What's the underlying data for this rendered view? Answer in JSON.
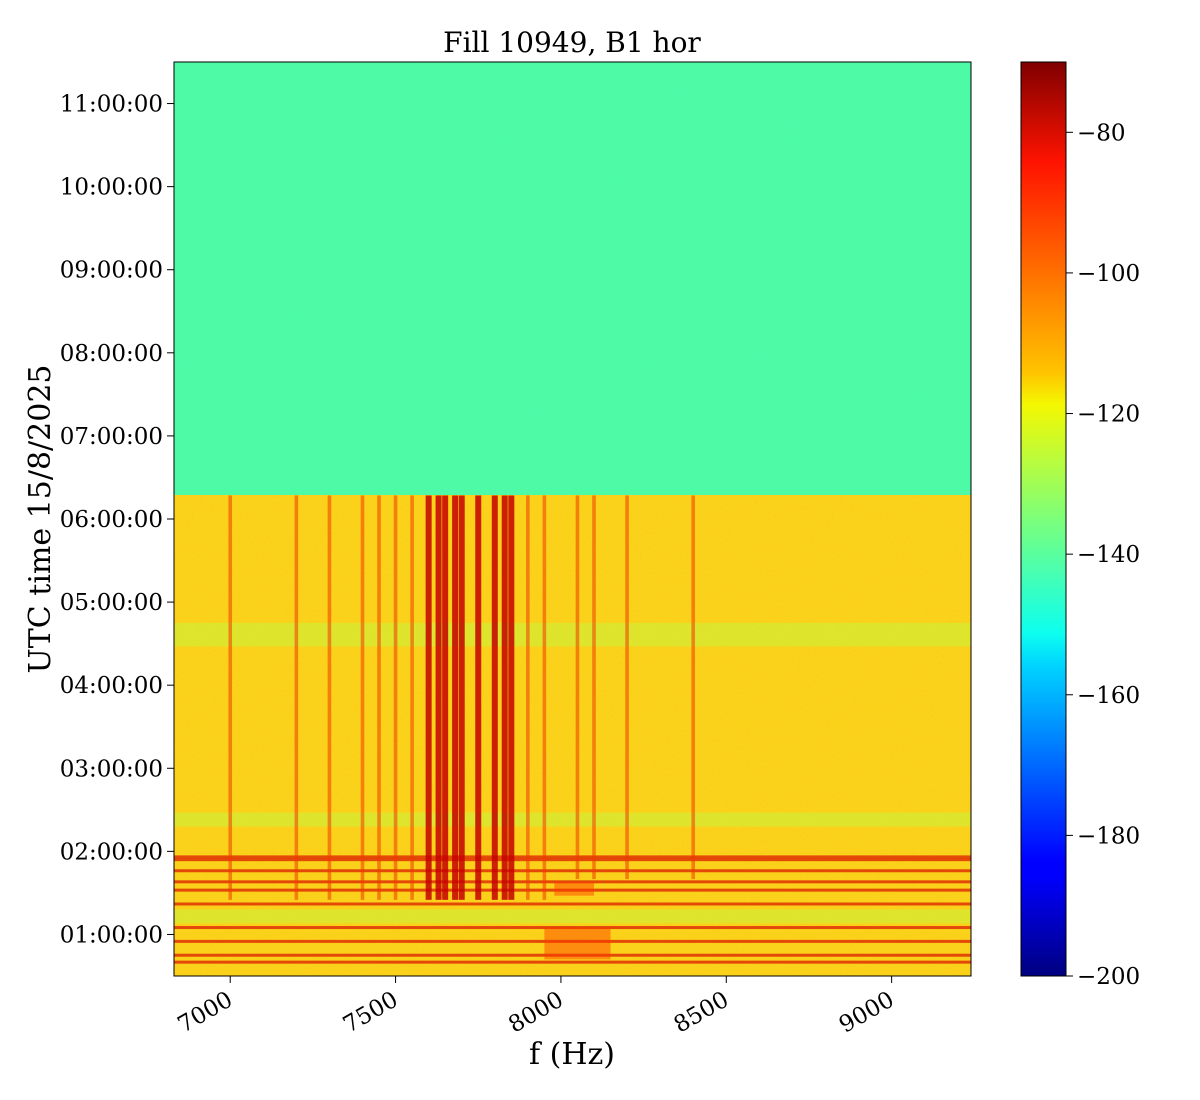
{
  "chart_data": {
    "type": "heatmap",
    "title": "Fill 10949, B1 hor",
    "xlabel": "f (Hz)",
    "ylabel": "UTC time 15/8/2025",
    "xlim": [
      6830,
      9240
    ],
    "x_ticks": [
      {
        "value": 7000,
        "label": "7000"
      },
      {
        "value": 7500,
        "label": "7500"
      },
      {
        "value": 8000,
        "label": "8000"
      },
      {
        "value": 8500,
        "label": "8500"
      },
      {
        "value": 9000,
        "label": "9000"
      }
    ],
    "y_ticks": [
      {
        "value": "01:00:00",
        "label": "01:00:00"
      },
      {
        "value": "02:00:00",
        "label": "02:00:00"
      },
      {
        "value": "03:00:00",
        "label": "03:00:00"
      },
      {
        "value": "04:00:00",
        "label": "04:00:00"
      },
      {
        "value": "05:00:00",
        "label": "05:00:00"
      },
      {
        "value": "06:00:00",
        "label": "06:00:00"
      },
      {
        "value": "07:00:00",
        "label": "07:00:00"
      },
      {
        "value": "08:00:00",
        "label": "08:00:00"
      },
      {
        "value": "09:00:00",
        "label": "09:00:00"
      },
      {
        "value": "10:00:00",
        "label": "10:00:00"
      },
      {
        "value": "11:00:00",
        "label": "11:00:00"
      }
    ],
    "ylim": [
      "00:30:00",
      "11:30:00"
    ],
    "colorbar": {
      "colormap": "jet",
      "range": [
        -200,
        -70
      ],
      "ticks": [
        {
          "value": -80,
          "label": "−80"
        },
        {
          "value": -100,
          "label": "−100"
        },
        {
          "value": -120,
          "label": "−120"
        },
        {
          "value": -140,
          "label": "−140"
        },
        {
          "value": -160,
          "label": "−160"
        },
        {
          "value": -180,
          "label": "−180"
        },
        {
          "value": -200,
          "label": "−200"
        }
      ]
    },
    "regions": [
      {
        "from": "06:17:00",
        "to": "11:30:00",
        "level": -138
      },
      {
        "from": "00:30:00",
        "to": "06:17:00",
        "level": -112
      }
    ],
    "strong_lines_hz": [
      7000,
      7200,
      7300,
      7400,
      7450,
      7500,
      7550,
      7600,
      7630,
      7650,
      7680,
      7700,
      7750,
      7800,
      7830,
      7850,
      7900,
      7950,
      8050,
      8100,
      8200,
      8400
    ],
    "grid": false
  }
}
